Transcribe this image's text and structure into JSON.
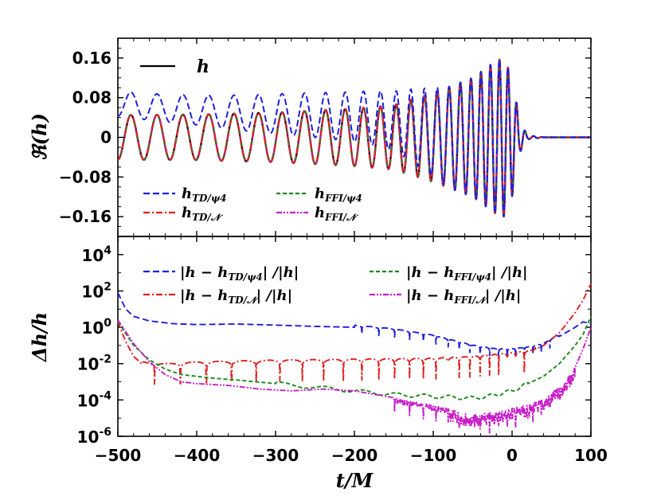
{
  "chart_data": [
    {
      "type": "line",
      "panel": "top",
      "ylabel": "ℜ(h)",
      "xlim": [
        -500,
        100
      ],
      "ylim": [
        -0.2,
        0.2
      ],
      "yticks": [
        0.16,
        0.08,
        0,
        -0.08,
        -0.16
      ],
      "ytick_labels": [
        "0.16",
        "0.08",
        "0",
        "−0.08",
        "−0.16"
      ],
      "legend": [
        {
          "key": "h",
          "label": "h",
          "color": "#000000",
          "dash": "solid"
        },
        {
          "key": "td_psi4",
          "label": "hTD/ψ4",
          "color": "#1f1fe0",
          "dash": "dashed"
        },
        {
          "key": "td_n",
          "label": "hTD/N",
          "color": "#e01f1f",
          "dash": "dashdot"
        },
        {
          "key": "ffi_psi4",
          "label": "hFFI/ψ4",
          "color": "#1a8a1a",
          "dash": "dashed"
        },
        {
          "key": "ffi_n",
          "label": "hFFI/N",
          "color": "#c81ec8",
          "dash": "dashdotdot"
        }
      ],
      "series": [
        {
          "name": "h",
          "envelope": [
            [
              -500,
              0.045
            ],
            [
              -400,
              0.046
            ],
            [
              -300,
              0.05
            ],
            [
              -200,
              0.058
            ],
            [
              -150,
              0.065
            ],
            [
              -100,
              0.09
            ],
            [
              -50,
              0.12
            ],
            [
              -20,
              0.155
            ],
            [
              -10,
              0.16
            ],
            [
              0,
              0.12
            ],
            [
              10,
              0.03
            ],
            [
              20,
              0.004
            ],
            [
              40,
              0.0
            ]
          ],
          "offset": 0.0
        },
        {
          "name": "hTD/ψ4",
          "envelope": [
            [
              -500,
              0.025
            ],
            [
              -400,
              0.03
            ],
            [
              -300,
              0.04
            ],
            [
              -200,
              0.05
            ],
            [
              -150,
              0.06
            ],
            [
              -100,
              0.09
            ],
            [
              -50,
              0.12
            ],
            [
              -20,
              0.155
            ],
            [
              -10,
              0.16
            ],
            [
              0,
              0.12
            ],
            [
              10,
              0.03
            ],
            [
              20,
              0.004
            ],
            [
              40,
              0.0
            ]
          ],
          "offset": [
            [
              -500,
              0.068
            ],
            [
              -450,
              0.06
            ],
            [
              -350,
              0.05
            ],
            [
              -250,
              0.045
            ],
            [
              -180,
              0.04
            ],
            [
              -140,
              0.03
            ],
            [
              -110,
              0.015
            ],
            [
              -80,
              0.0
            ]
          ]
        }
      ],
      "frequency_model": {
        "t0": -500,
        "t_merger": -10,
        "omega_early": 0.19,
        "omega_merger": 0.58
      }
    },
    {
      "type": "line",
      "panel": "bottom",
      "xlabel": "t/M",
      "ylabel": "Δh/h",
      "xlim": [
        -500,
        100
      ],
      "ylim_log10": [
        -6,
        5
      ],
      "xticks": [
        -500,
        -400,
        -300,
        -200,
        -100,
        0,
        100
      ],
      "xtick_labels": [
        "−500",
        "−400",
        "−300",
        "−200",
        "−100",
        "0",
        "100"
      ],
      "ytick_labels": [
        "10^4",
        "10^2",
        "10^0",
        "10^-2",
        "10^-4",
        "10^-6"
      ],
      "ytick_values": [
        4,
        2,
        0,
        -2,
        -4,
        -6
      ],
      "legend": [
        {
          "label": "|h − hTD/ψ4| / |h|",
          "color": "#1f1fe0",
          "dash": "dashed"
        },
        {
          "label": "|h − hTD/N| / |h|",
          "color": "#e01f1f",
          "dash": "dashdot"
        },
        {
          "label": "|h − hFFI/ψ4| / |h|",
          "color": "#1a8a1a",
          "dash": "dashed"
        },
        {
          "label": "|h − hFFI/N| / |h|",
          "color": "#c81ec8",
          "dash": "dashdotdot"
        }
      ],
      "series": [
        {
          "name": "td_psi4",
          "log10": [
            [
              -500,
              1.9
            ],
            [
              -490,
              1.0
            ],
            [
              -480,
              0.6
            ],
            [
              -460,
              0.35
            ],
            [
              -430,
              0.2
            ],
            [
              -400,
              0.15
            ],
            [
              -350,
              0.18
            ],
            [
              -300,
              0.12
            ],
            [
              -250,
              0.05
            ],
            [
              -200,
              0.0
            ],
            [
              -150,
              -0.2
            ],
            [
              -100,
              -0.55
            ],
            [
              -50,
              -1.1
            ],
            [
              -20,
              -1.3
            ],
            [
              0,
              -1.3
            ],
            [
              20,
              -1.2
            ],
            [
              40,
              -1.0
            ],
            [
              60,
              -0.5
            ],
            [
              80,
              0.0
            ],
            [
              90,
              0.3
            ],
            [
              100,
              0.2
            ]
          ]
        },
        {
          "name": "td_n",
          "log10": [
            [
              -500,
              0.3
            ],
            [
              -490,
              -0.8
            ],
            [
              -480,
              -1.6
            ],
            [
              -470,
              -2.0
            ],
            [
              -440,
              -2.1
            ],
            [
              -400,
              -2.0
            ],
            [
              -300,
              -1.9
            ],
            [
              -200,
              -1.85
            ],
            [
              -100,
              -1.8
            ],
            [
              -50,
              -1.7
            ],
            [
              0,
              -1.5
            ],
            [
              20,
              -1.4
            ],
            [
              40,
              -1.0
            ],
            [
              60,
              -0.3
            ],
            [
              80,
              0.8
            ],
            [
              90,
              1.5
            ],
            [
              100,
              2.4
            ]
          ]
        },
        {
          "name": "ffi_psi4",
          "log10": [
            [
              -500,
              0.3
            ],
            [
              -480,
              -1.0
            ],
            [
              -460,
              -1.8
            ],
            [
              -440,
              -2.3
            ],
            [
              -420,
              -2.6
            ],
            [
              -400,
              -2.7
            ],
            [
              -380,
              -2.8
            ],
            [
              -350,
              -2.9
            ],
            [
              -300,
              -3.1
            ],
            [
              -250,
              -3.3
            ],
            [
              -200,
              -3.5
            ],
            [
              -150,
              -3.7
            ],
            [
              -100,
              -3.8
            ],
            [
              -50,
              -3.9
            ],
            [
              -30,
              -3.8
            ],
            [
              0,
              -3.5
            ],
            [
              20,
              -3.1
            ],
            [
              40,
              -2.7
            ],
            [
              60,
              -2.0
            ],
            [
              80,
              -1.0
            ],
            [
              90,
              -0.4
            ],
            [
              100,
              0.6
            ]
          ]
        },
        {
          "name": "ffi_n",
          "log10": [
            [
              -500,
              0.4
            ],
            [
              -480,
              -0.9
            ],
            [
              -460,
              -1.9
            ],
            [
              -440,
              -2.6
            ],
            [
              -420,
              -3.0
            ],
            [
              -400,
              -3.1
            ],
            [
              -360,
              -3.2
            ],
            [
              -320,
              -3.4
            ],
            [
              -280,
              -3.5
            ],
            [
              -240,
              -3.4
            ],
            [
              -200,
              -3.5
            ],
            [
              -160,
              -3.8
            ],
            [
              -120,
              -4.1
            ],
            [
              -80,
              -4.5
            ],
            [
              -50,
              -4.8
            ],
            [
              -30,
              -4.7
            ],
            [
              0,
              -4.4
            ],
            [
              20,
              -4.3
            ],
            [
              40,
              -3.9
            ],
            [
              60,
              -3.3
            ],
            [
              80,
              -2.2
            ],
            [
              90,
              -1.2
            ],
            [
              100,
              0.0
            ]
          ]
        }
      ]
    }
  ],
  "labels": {
    "top_ylabel": "ℜ(h)",
    "bottom_ylabel": "Δh/h",
    "xlabel": "t/M",
    "legend_h": "h",
    "legend_td_psi4_main": "h",
    "legend_td_psi4_sub": "TD/ψ4",
    "legend_td_n_main": "h",
    "legend_td_n_sub": "TD/𝒩",
    "legend_ffi_psi4_main": "h",
    "legend_ffi_psi4_sub": "FFI/ψ4",
    "legend_ffi_n_main": "h",
    "legend_ffi_n_sub": "FFI/𝒩",
    "bl_td_psi4_pre": "|h − h",
    "bl_td_psi4_sub": "TD/ψ4",
    "bl_td_psi4_post": "| /|h|",
    "bl_td_n_pre": "|h − h",
    "bl_td_n_sub": "TD/𝒩",
    "bl_td_n_post": "| /|h|",
    "bl_ffi_psi4_pre": "|h − h",
    "bl_ffi_psi4_sub": "FFI/ψ4",
    "bl_ffi_psi4_post": "| /|h|",
    "bl_ffi_n_pre": "|h − h",
    "bl_ffi_n_sub": "FFI/𝒩",
    "bl_ffi_n_post": "| /|h|"
  },
  "colors": {
    "h": "#000000",
    "td_psi4": "#1f1fe0",
    "td_n": "#e01f1f",
    "ffi_psi4": "#1a8a1a",
    "ffi_n": "#c81ec8"
  }
}
